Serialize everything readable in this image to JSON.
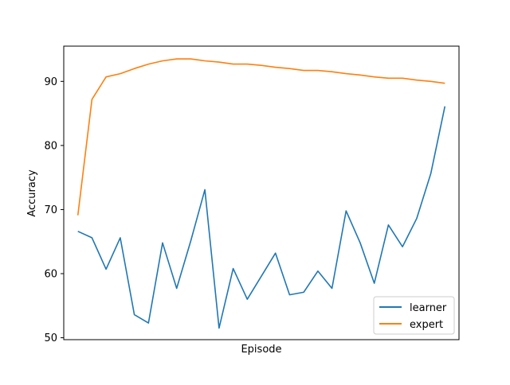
{
  "chart_data": {
    "type": "line",
    "title": "",
    "xlabel": "Episode",
    "ylabel": "Accuracy",
    "xlim": [
      0,
      28
    ],
    "ylim": [
      49.7,
      95.5
    ],
    "yticks": [
      50,
      60,
      70,
      80,
      90
    ],
    "x_tick_labels_shown": false,
    "grid": false,
    "legend_position": "lower right",
    "series": [
      {
        "name": "learner",
        "color": "#1f77b4",
        "x": [
          1,
          2,
          3,
          4,
          5,
          6,
          7,
          8,
          9,
          10,
          11,
          12,
          13,
          14,
          15,
          16,
          17,
          18,
          19,
          20,
          21,
          22,
          23,
          24,
          25,
          26,
          27
        ],
        "values": [
          66.6,
          65.6,
          60.7,
          65.6,
          53.6,
          52.3,
          64.8,
          57.7,
          65.1,
          73.1,
          51.5,
          60.8,
          56.0,
          59.6,
          63.2,
          56.7,
          57.1,
          60.4,
          57.7,
          69.8,
          64.8,
          58.5,
          67.6,
          64.2,
          68.6,
          75.6,
          86.1
        ]
      },
      {
        "name": "expert",
        "color": "#ff7f0e",
        "x": [
          1,
          2,
          3,
          4,
          5,
          6,
          7,
          8,
          9,
          10,
          11,
          12,
          13,
          14,
          15,
          16,
          17,
          18,
          19,
          20,
          21,
          22,
          23,
          24,
          25,
          26,
          27
        ],
        "values": [
          69.1,
          87.2,
          90.7,
          91.2,
          92.0,
          92.7,
          93.2,
          93.5,
          93.5,
          93.2,
          93.0,
          92.7,
          92.7,
          92.5,
          92.2,
          92.0,
          91.7,
          91.7,
          91.5,
          91.2,
          91.0,
          90.7,
          90.5,
          90.5,
          90.2,
          90.0,
          89.7
        ]
      }
    ]
  }
}
